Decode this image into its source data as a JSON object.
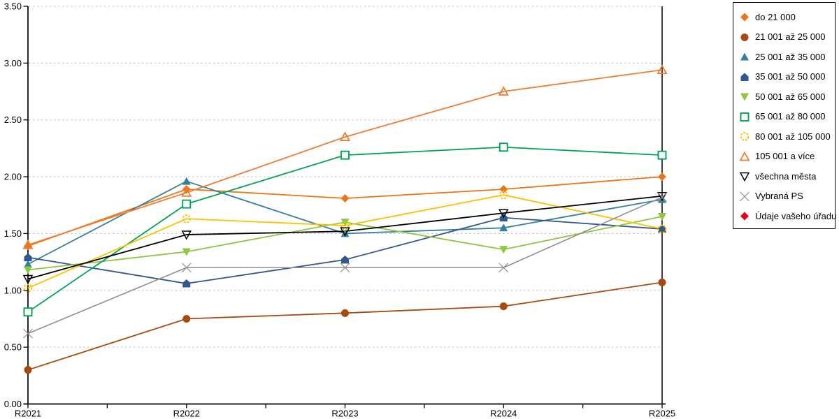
{
  "chart_data": {
    "type": "line",
    "title": "",
    "xlabel": "",
    "ylabel": "",
    "categories": [
      "R2021",
      "R2022",
      "R2023",
      "R2024",
      "R2025"
    ],
    "y_axis": {
      "min": 0,
      "max": 3.5,
      "step": 0.5,
      "tick_labels": [
        "0.00",
        "0.50",
        "1.00",
        "1.50",
        "2.00",
        "2.50",
        "3.00",
        "3.50"
      ]
    },
    "grid": {
      "horizontal": true,
      "style": "dashed",
      "color": "#bdbdbd"
    },
    "legend": {
      "position": "right-outside",
      "border_color": "#000000",
      "background": "#ffffff"
    },
    "series": [
      {
        "name": "do 21 000",
        "color": "#e8761b",
        "marker": "diamond-filled",
        "values": [
          1.39,
          1.89,
          1.81,
          1.89,
          2.0
        ]
      },
      {
        "name": "21 001 až 25 000",
        "color": "#a54a10",
        "marker": "circle-filled",
        "values": [
          0.3,
          0.75,
          0.8,
          0.86,
          1.07
        ]
      },
      {
        "name": "25 001 až 35 000",
        "color": "#357f9e",
        "marker": "triangle-up-filled",
        "values": [
          1.23,
          1.96,
          1.5,
          1.55,
          1.8
        ]
      },
      {
        "name": "35 001 až 50 000",
        "color": "#30588c",
        "marker": "pentagon-filled",
        "values": [
          1.29,
          1.06,
          1.27,
          1.64,
          1.54
        ]
      },
      {
        "name": "50 001 až 65 000",
        "color": "#8dc63f",
        "marker": "triangle-down-filled",
        "values": [
          1.18,
          1.34,
          1.6,
          1.36,
          1.65
        ]
      },
      {
        "name": "65 001 až 80 000",
        "color": "#00a45a",
        "marker": "square-open",
        "values": [
          0.81,
          1.76,
          2.19,
          2.26,
          2.19
        ]
      },
      {
        "name": "80 001 až 105 000",
        "color": "#ffc000",
        "marker": "circle-open-dashed",
        "values": [
          1.02,
          1.63,
          1.57,
          1.84,
          1.54
        ]
      },
      {
        "name": "105 001 a více",
        "color": "#ed7d31",
        "marker": "triangle-up-open",
        "values": [
          1.4,
          1.86,
          2.35,
          2.75,
          2.94
        ]
      },
      {
        "name": "všechna města",
        "color": "#000000",
        "marker": "triangle-down-open",
        "values": [
          1.1,
          1.49,
          1.52,
          1.68,
          1.83
        ]
      },
      {
        "name": "Vybraná PS",
        "color": "#8f8f8f",
        "marker": "x-cross",
        "values": [
          0.62,
          1.2,
          1.2,
          1.2,
          1.82
        ]
      },
      {
        "name": "Údaje vašeho úřadu",
        "color": "#e30613",
        "marker": "diamond-filled",
        "values": []
      }
    ]
  }
}
